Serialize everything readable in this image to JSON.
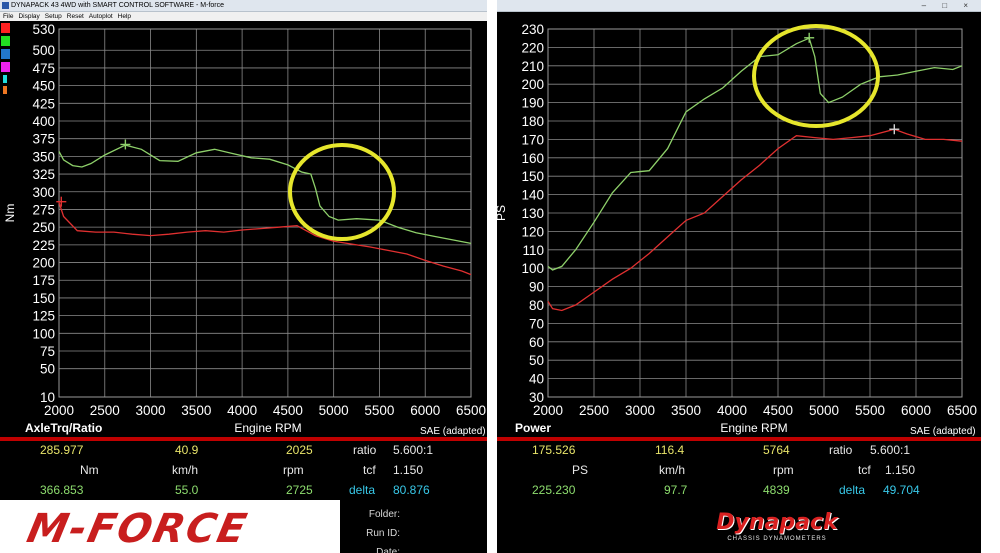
{
  "window": {
    "title": "DYNAPACK 43 4WD with SMART CONTROL SOFTWARE - M-force",
    "menu": [
      "File",
      "Display",
      "Setup",
      "Reset",
      "Autoplot",
      "Help"
    ],
    "controls": "– □ ×"
  },
  "swatch_colors": [
    "#ff2020",
    "#22dd22",
    "#2277cc",
    "#ee22ee",
    "#22dddd",
    "#ee7722"
  ],
  "colors": {
    "torque_curve_a": "#e03030",
    "torque_curve_b": "#8ed06a",
    "highlight": "#e6e62c",
    "divider": "#c00000"
  },
  "chart_data": [
    {
      "type": "line",
      "title": "AxleTrq/Ratio",
      "xlabel": "Engine RPM",
      "ylabel": "Nm",
      "note": "SAE (adapted)",
      "xlim": [
        2000,
        6500
      ],
      "ylim": [
        10,
        530
      ],
      "xticks": [
        2000,
        2500,
        3000,
        3500,
        4000,
        4500,
        5000,
        5500,
        6000,
        6500
      ],
      "yticks": [
        10,
        50,
        75,
        100,
        125,
        150,
        175,
        200,
        225,
        250,
        275,
        300,
        325,
        350,
        375,
        400,
        425,
        450,
        475,
        500,
        530
      ],
      "grid": true,
      "series": [
        {
          "color": "#e03030",
          "marker_at": [
            2025,
            285.977
          ],
          "x": [
            2000,
            2050,
            2200,
            2400,
            2600,
            2800,
            3000,
            3200,
            3400,
            3600,
            3800,
            4000,
            4200,
            4400,
            4600,
            4800,
            5000,
            5200,
            5400,
            5600,
            5800,
            6000,
            6200,
            6400,
            6500
          ],
          "y": [
            285,
            265,
            245,
            243,
            243,
            240,
            238,
            240,
            243,
            245,
            243,
            246,
            248,
            250,
            252,
            238,
            230,
            226,
            222,
            217,
            212,
            203,
            195,
            188,
            183
          ]
        },
        {
          "color": "#8ed06a",
          "marker_at": [
            2725,
            366.853
          ],
          "x": [
            2000,
            2050,
            2150,
            2250,
            2350,
            2500,
            2725,
            2900,
            3100,
            3300,
            3500,
            3700,
            3900,
            4100,
            4300,
            4500,
            4650,
            4750,
            4800,
            4850,
            4950,
            5050,
            5250,
            5500,
            5700,
            5900,
            6100,
            6300,
            6500
          ],
          "y": [
            357,
            345,
            337,
            335,
            340,
            352,
            366,
            360,
            344,
            343,
            355,
            360,
            354,
            348,
            346,
            338,
            328,
            325,
            305,
            280,
            265,
            260,
            262,
            260,
            250,
            242,
            237,
            232,
            227
          ]
        }
      ]
    },
    {
      "type": "line",
      "title": "Power",
      "xlabel": "Engine RPM",
      "ylabel": "PS",
      "note": "SAE (adapted)",
      "xlim": [
        2000,
        6500
      ],
      "ylim": [
        30,
        230
      ],
      "xticks": [
        2000,
        2500,
        3000,
        3500,
        4000,
        4500,
        5000,
        5500,
        6000,
        6500
      ],
      "yticks": [
        30,
        40,
        50,
        60,
        70,
        80,
        90,
        100,
        110,
        120,
        130,
        140,
        150,
        160,
        170,
        180,
        190,
        200,
        210,
        220,
        230
      ],
      "grid": true,
      "series": [
        {
          "color": "#e03030",
          "marker_at": [
            5764,
            175.526
          ],
          "x": [
            2000,
            2050,
            2150,
            2300,
            2500,
            2700,
            2900,
            3100,
            3300,
            3500,
            3700,
            3900,
            4100,
            4300,
            4500,
            4700,
            4900,
            5100,
            5300,
            5500,
            5764,
            5900,
            6100,
            6300,
            6500
          ],
          "y": [
            82,
            78,
            77,
            80,
            87,
            94,
            100,
            108,
            117,
            126,
            130,
            139,
            148,
            156,
            165,
            172,
            171,
            170,
            171,
            172,
            175.5,
            173,
            170,
            170,
            169
          ]
        },
        {
          "color": "#8ed06a",
          "marker_at": [
            4839,
            225.23
          ],
          "x": [
            2000,
            2050,
            2150,
            2300,
            2500,
            2700,
            2900,
            3100,
            3300,
            3500,
            3700,
            3900,
            4100,
            4300,
            4500,
            4700,
            4839,
            4900,
            4960,
            5050,
            5200,
            5400,
            5600,
            5800,
            6000,
            6200,
            6400,
            6500
          ],
          "y": [
            101,
            99,
            101,
            110,
            125,
            141,
            152,
            153,
            165,
            185,
            192,
            198,
            207,
            215,
            216,
            222,
            225,
            215,
            195,
            190,
            193,
            200,
            204,
            205,
            207,
            209,
            208,
            210
          ]
        }
      ]
    }
  ],
  "left_readout": {
    "title": "AxleTrq/Ratio",
    "row1": {
      "v1": "285.977",
      "v2": "40.9",
      "v3": "2025",
      "k": "ratio",
      "kv": "5.600:1"
    },
    "row2": {
      "u1": "Nm",
      "u2": "km/h",
      "u3": "rpm",
      "k": "tcf",
      "kv": "1.150"
    },
    "row3": {
      "v1": "366.853",
      "v2": "55.0",
      "v3": "2725",
      "k": "delta",
      "kv": "80.876"
    }
  },
  "right_readout": {
    "title": "Power",
    "row1": {
      "v1": "175.526",
      "v2": "116.4",
      "v3": "5764",
      "k": "ratio",
      "kv": "5.600:1"
    },
    "row2": {
      "u1": "PS",
      "u2": "km/h",
      "u3": "rpm",
      "k": "tcf",
      "kv": "1.150"
    },
    "row3": {
      "v1": "225.230",
      "v2": "97.7",
      "v3": "4839",
      "k": "delta",
      "kv": "49.704"
    }
  },
  "footer": {
    "left_logo": "M-FORCE",
    "folder_label": "Folder:",
    "runid_label": "Run ID:",
    "date_label": "Date:",
    "right_logo": "Dynapack",
    "right_logo_sub": "CHASSIS DYNAMOMETERS"
  }
}
